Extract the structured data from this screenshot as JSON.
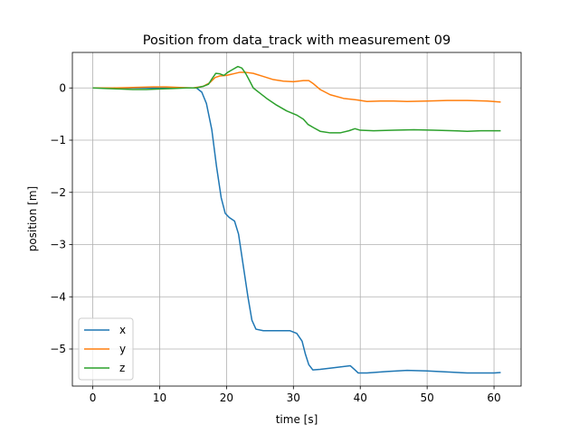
{
  "chart_data": {
    "type": "line",
    "title": "Position from data_track with measurement 09",
    "xlabel": "time [s]",
    "ylabel": "position [m]",
    "xlim": [
      -3.05,
      64.05
    ],
    "ylim": [
      -5.71,
      0.68
    ],
    "xticks": [
      0,
      10,
      20,
      30,
      40,
      50,
      60
    ],
    "yticks": [
      0,
      -1,
      -2,
      -3,
      -4,
      -5
    ],
    "xtick_labels": [
      "0",
      "10",
      "20",
      "30",
      "40",
      "50",
      "60"
    ],
    "ytick_labels": [
      "0",
      "−1",
      "−2",
      "−3",
      "−4",
      "−5"
    ],
    "grid": true,
    "legend_position": "lower-left",
    "series": [
      {
        "name": "x",
        "color": "#1f77b4",
        "points": [
          [
            0,
            0
          ],
          [
            5,
            0
          ],
          [
            10,
            0
          ],
          [
            14,
            0
          ],
          [
            15.5,
            0
          ],
          [
            16.3,
            -0.08
          ],
          [
            17,
            -0.3
          ],
          [
            17.8,
            -0.8
          ],
          [
            18.5,
            -1.5
          ],
          [
            19.2,
            -2.1
          ],
          [
            19.8,
            -2.4
          ],
          [
            20.4,
            -2.48
          ],
          [
            21.2,
            -2.55
          ],
          [
            21.8,
            -2.8
          ],
          [
            22.5,
            -3.4
          ],
          [
            23.2,
            -4.0
          ],
          [
            23.8,
            -4.45
          ],
          [
            24.4,
            -4.62
          ],
          [
            25.5,
            -4.65
          ],
          [
            27,
            -4.65
          ],
          [
            29.5,
            -4.65
          ],
          [
            30.5,
            -4.7
          ],
          [
            31.3,
            -4.85
          ],
          [
            31.8,
            -5.1
          ],
          [
            32.3,
            -5.3
          ],
          [
            32.9,
            -5.4
          ],
          [
            34,
            -5.39
          ],
          [
            36,
            -5.36
          ],
          [
            38.5,
            -5.32
          ],
          [
            39.2,
            -5.4
          ],
          [
            39.7,
            -5.46
          ],
          [
            41,
            -5.46
          ],
          [
            44,
            -5.43
          ],
          [
            47,
            -5.41
          ],
          [
            50,
            -5.42
          ],
          [
            53,
            -5.44
          ],
          [
            56,
            -5.46
          ],
          [
            58,
            -5.46
          ],
          [
            60,
            -5.46
          ],
          [
            61,
            -5.45
          ]
        ]
      },
      {
        "name": "y",
        "color": "#ff7f0e",
        "points": [
          [
            0,
            0
          ],
          [
            3,
            0
          ],
          [
            6,
            0.01
          ],
          [
            9,
            0.02
          ],
          [
            11,
            0.02
          ],
          [
            13,
            0.01
          ],
          [
            15,
            0
          ],
          [
            16.5,
            0.03
          ],
          [
            17.5,
            0.1
          ],
          [
            18.3,
            0.2
          ],
          [
            19,
            0.23
          ],
          [
            20,
            0.24
          ],
          [
            21,
            0.27
          ],
          [
            22,
            0.3
          ],
          [
            22.8,
            0.3
          ],
          [
            24,
            0.28
          ],
          [
            25.5,
            0.22
          ],
          [
            27,
            0.16
          ],
          [
            28.5,
            0.13
          ],
          [
            30,
            0.12
          ],
          [
            31.5,
            0.14
          ],
          [
            32.3,
            0.14
          ],
          [
            33,
            0.08
          ],
          [
            34,
            -0.03
          ],
          [
            35.5,
            -0.13
          ],
          [
            37.5,
            -0.2
          ],
          [
            39.5,
            -0.23
          ],
          [
            41,
            -0.26
          ],
          [
            43,
            -0.25
          ],
          [
            45,
            -0.25
          ],
          [
            47,
            -0.26
          ],
          [
            50,
            -0.25
          ],
          [
            53,
            -0.24
          ],
          [
            56,
            -0.24
          ],
          [
            59,
            -0.25
          ],
          [
            61,
            -0.27
          ]
        ]
      },
      {
        "name": "z",
        "color": "#2ca02c",
        "points": [
          [
            0,
            0
          ],
          [
            2,
            -0.01
          ],
          [
            4,
            -0.02
          ],
          [
            6,
            -0.03
          ],
          [
            8,
            -0.03
          ],
          [
            10,
            -0.02
          ],
          [
            12,
            -0.01
          ],
          [
            14,
            0
          ],
          [
            15.5,
            0
          ],
          [
            16.5,
            0.03
          ],
          [
            17.3,
            0.07
          ],
          [
            17.8,
            0.17
          ],
          [
            18.4,
            0.28
          ],
          [
            19,
            0.27
          ],
          [
            19.6,
            0.24
          ],
          [
            20.2,
            0.3
          ],
          [
            21,
            0.36
          ],
          [
            21.7,
            0.41
          ],
          [
            22.3,
            0.38
          ],
          [
            22.9,
            0.27
          ],
          [
            23.4,
            0.15
          ],
          [
            24,
            0
          ],
          [
            25,
            -0.1
          ],
          [
            26,
            -0.2
          ],
          [
            27.5,
            -0.33
          ],
          [
            29,
            -0.44
          ],
          [
            30.5,
            -0.52
          ],
          [
            31.5,
            -0.6
          ],
          [
            32.2,
            -0.7
          ],
          [
            33,
            -0.76
          ],
          [
            34,
            -0.83
          ],
          [
            35.5,
            -0.86
          ],
          [
            37,
            -0.86
          ],
          [
            38.3,
            -0.82
          ],
          [
            39.2,
            -0.78
          ],
          [
            40,
            -0.81
          ],
          [
            42,
            -0.82
          ],
          [
            45,
            -0.81
          ],
          [
            48,
            -0.8
          ],
          [
            51,
            -0.81
          ],
          [
            54,
            -0.82
          ],
          [
            56,
            -0.83
          ],
          [
            58,
            -0.82
          ],
          [
            61,
            -0.82
          ]
        ]
      }
    ]
  }
}
